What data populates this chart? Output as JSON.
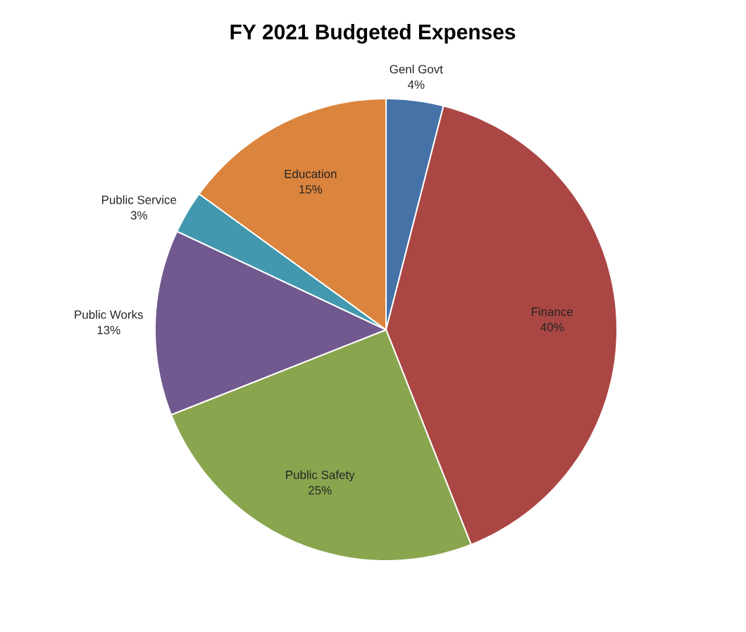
{
  "chart_data": {
    "type": "pie",
    "title": "FY 2021 Budgeted Expenses",
    "categories": [
      "Genl Govt",
      "Finance",
      "Public Safety",
      "Public Works",
      "Public Service",
      "Education"
    ],
    "values": [
      4,
      40,
      25,
      13,
      3,
      15
    ],
    "value_labels": [
      "4%",
      "40%",
      "25%",
      "13%",
      "3%",
      "15%"
    ],
    "colors": [
      "#4572a7",
      "#aa4643",
      "#89a54e",
      "#71588f",
      "#4198af",
      "#db843d"
    ]
  }
}
